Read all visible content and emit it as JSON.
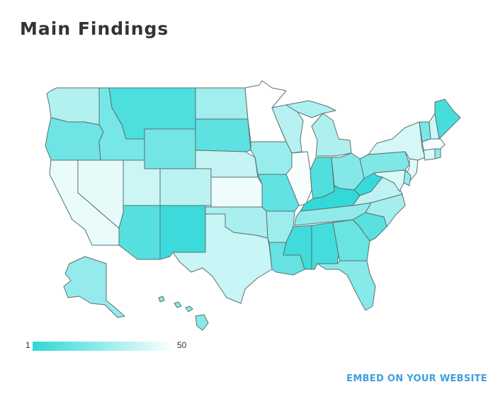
{
  "title": "Main Findings",
  "embed_link": "EMBED ON YOUR WEBSITE",
  "legend": {
    "min_label": "1",
    "max_label": "50",
    "color_min": "#2fd8d8",
    "color_max": "#ffffff"
  },
  "stroke_color": "#5a7070",
  "states": [
    {
      "id": "WA",
      "rank": 32
    },
    {
      "id": "OR",
      "rank": 16
    },
    {
      "id": "CA",
      "rank": 45
    },
    {
      "id": "NV",
      "rank": 44
    },
    {
      "id": "ID",
      "rank": 18
    },
    {
      "id": "MT",
      "rank": 8
    },
    {
      "id": "WY",
      "rank": 17
    },
    {
      "id": "UT",
      "rank": 38
    },
    {
      "id": "AZ",
      "rank": 10
    },
    {
      "id": "NM",
      "rank": 4
    },
    {
      "id": "CO",
      "rank": 34
    },
    {
      "id": "ND",
      "rank": 28
    },
    {
      "id": "SD",
      "rank": 12
    },
    {
      "id": "NE",
      "rank": 36
    },
    {
      "id": "KS",
      "rank": 46
    },
    {
      "id": "OK",
      "rank": 30
    },
    {
      "id": "TX",
      "rank": 37
    },
    {
      "id": "MN",
      "rank": 50
    },
    {
      "id": "IA",
      "rank": 26
    },
    {
      "id": "MO",
      "rank": 13
    },
    {
      "id": "AR",
      "rank": 27
    },
    {
      "id": "LA",
      "rank": 14
    },
    {
      "id": "WI",
      "rank": 33
    },
    {
      "id": "IL",
      "rank": 48
    },
    {
      "id": "MI",
      "rank": 31
    },
    {
      "id": "IN",
      "rank": 9
    },
    {
      "id": "OH",
      "rank": 21
    },
    {
      "id": "KY",
      "rank": 2
    },
    {
      "id": "TN",
      "rank": 24
    },
    {
      "id": "MS",
      "rank": 5
    },
    {
      "id": "AL",
      "rank": 6
    },
    {
      "id": "GA",
      "rank": 15
    },
    {
      "id": "FL",
      "rank": 22
    },
    {
      "id": "SC",
      "rank": 11
    },
    {
      "id": "NC",
      "rank": 29
    },
    {
      "id": "VA",
      "rank": 35
    },
    {
      "id": "WV",
      "rank": 3
    },
    {
      "id": "PA",
      "rank": 20
    },
    {
      "id": "NY",
      "rank": 40
    },
    {
      "id": "VT",
      "rank": 19
    },
    {
      "id": "NH",
      "rank": 39
    },
    {
      "id": "ME",
      "rank": 7
    },
    {
      "id": "MA",
      "rank": 47
    },
    {
      "id": "CT",
      "rank": 42
    },
    {
      "id": "RI",
      "rank": 23
    },
    {
      "id": "NJ",
      "rank": 43
    },
    {
      "id": "DE",
      "rank": 25
    },
    {
      "id": "MD",
      "rank": 41
    },
    {
      "id": "AK",
      "rank": 25
    },
    {
      "id": "HI",
      "rank": 22
    }
  ]
}
